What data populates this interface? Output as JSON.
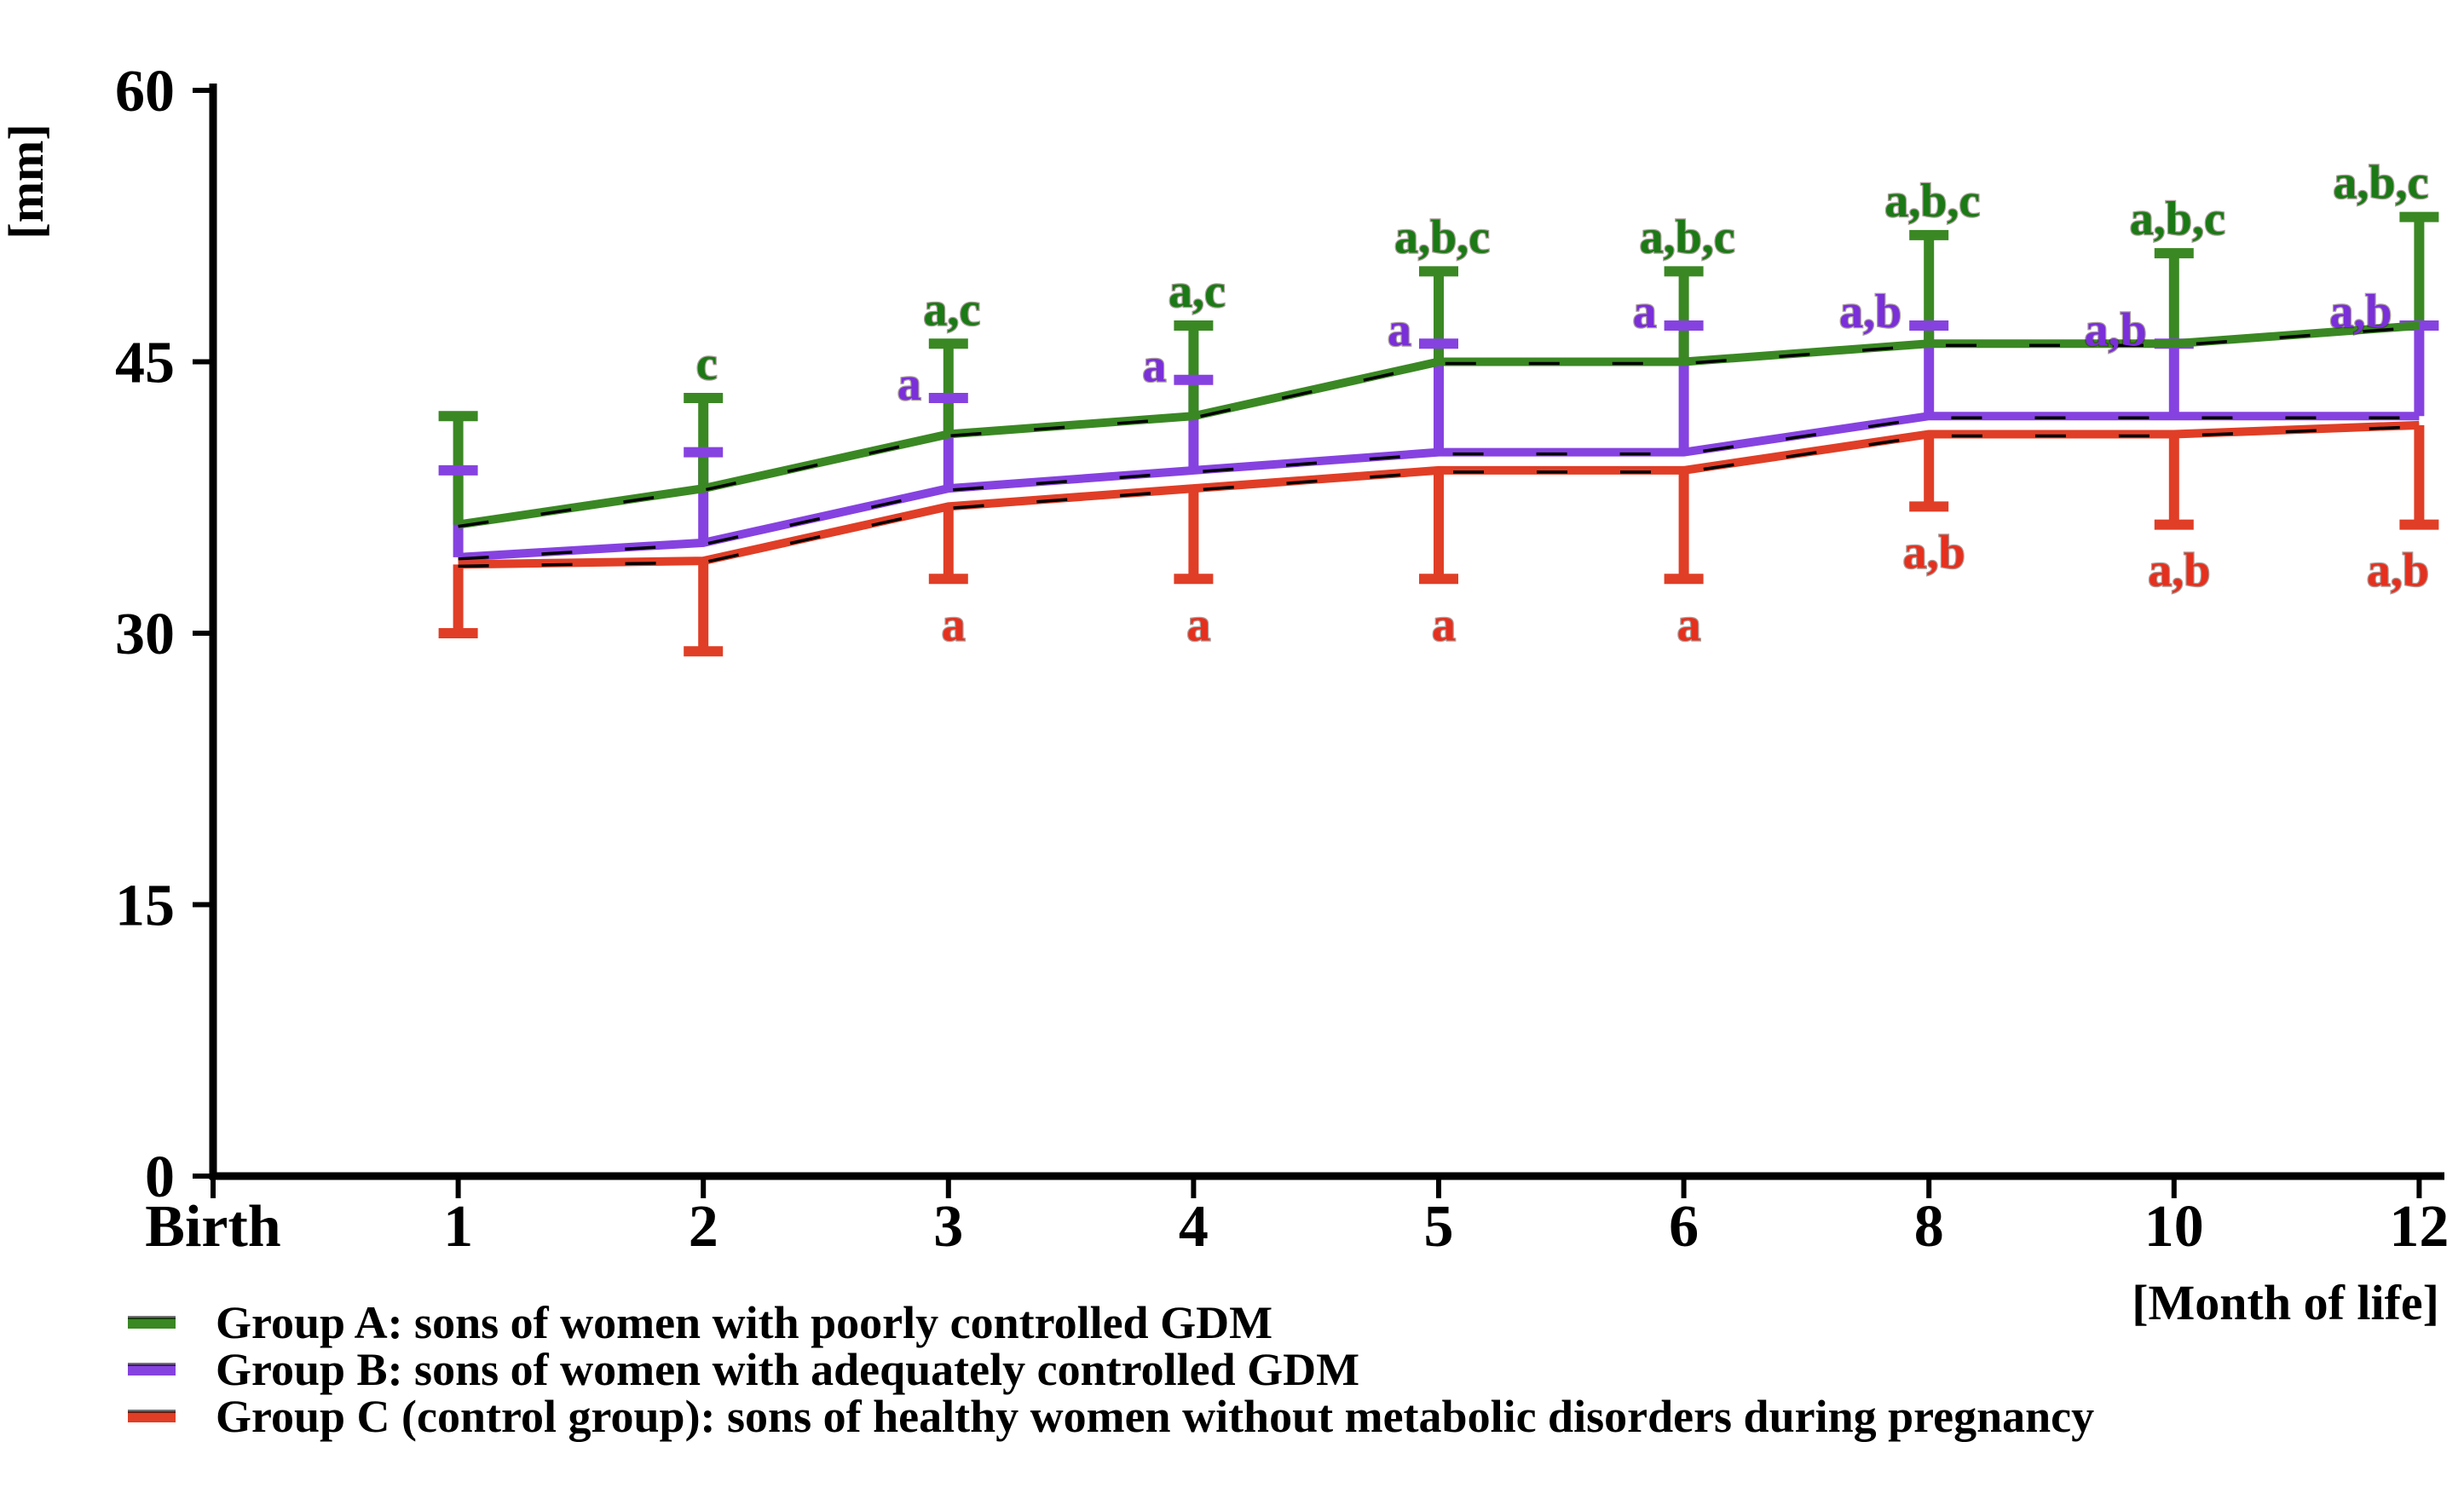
{
  "y_axis": {
    "label": "[mm]",
    "ticks": [
      60,
      45,
      30,
      15,
      0
    ]
  },
  "x_axis": {
    "label": "[Month of life]",
    "tick_labels": [
      "Birth",
      "1",
      "2",
      "3",
      "4",
      "5",
      "6",
      "8",
      "10",
      "12"
    ]
  },
  "chart_data": {
    "type": "line",
    "title": "",
    "xlabel": "[Month of life]",
    "ylabel": "[mm]",
    "ylim": [
      0,
      60
    ],
    "x_categories": [
      "Birth",
      "1",
      "2",
      "3",
      "4",
      "5",
      "6",
      "8",
      "10",
      "12"
    ],
    "data_months": [
      "1",
      "2",
      "3",
      "4",
      "5",
      "6",
      "8",
      "10",
      "12"
    ],
    "series": [
      {
        "name": "Group A",
        "color": "#3A8823",
        "annotation_color": "#1B7A15",
        "values": [
          36,
          38,
          41,
          42,
          45,
          45,
          46,
          46,
          47
        ],
        "error_top": [
          42,
          43,
          46,
          47,
          50,
          50,
          52,
          51,
          53
        ],
        "annotations": [
          "",
          "c",
          "a,c",
          "a,c",
          "a,b,c",
          "a,b,c",
          "a,b,c",
          "a,b,c",
          "a,b,c"
        ]
      },
      {
        "name": "Group B",
        "color": "#8642E0",
        "annotation_color": "#7A2FD9",
        "values": [
          34.2,
          35,
          38,
          39,
          40,
          40,
          42,
          42,
          42
        ],
        "error_top": [
          39,
          40,
          43,
          44,
          46,
          47,
          47,
          46,
          47
        ],
        "annotations": [
          "",
          "",
          "a",
          "a",
          "a",
          "a",
          "a,b",
          "a,b",
          "a,b"
        ]
      },
      {
        "name": "Group C",
        "color": "#E03E26",
        "annotation_color": "#E5301E",
        "values": [
          33.8,
          34,
          37,
          38,
          39,
          39,
          41,
          41,
          41.5
        ],
        "error_bottom": [
          30,
          29,
          33,
          33,
          33,
          33,
          37,
          36,
          36
        ],
        "annotations": [
          "",
          "",
          "a",
          "a",
          "a",
          "a",
          "a,b",
          "a,b",
          "a,b"
        ]
      }
    ]
  },
  "legend": {
    "items": [
      {
        "label": "Group A: sons of women with poorly controlled GDM",
        "color": "#3A8823"
      },
      {
        "label": "Group B: sons of women with adequately controlled GDM",
        "color": "#8642E0"
      },
      {
        "label": "Group C (control group): sons of healthy women without metabolic disorders during pregnancy",
        "color": "#E03E26"
      }
    ]
  }
}
